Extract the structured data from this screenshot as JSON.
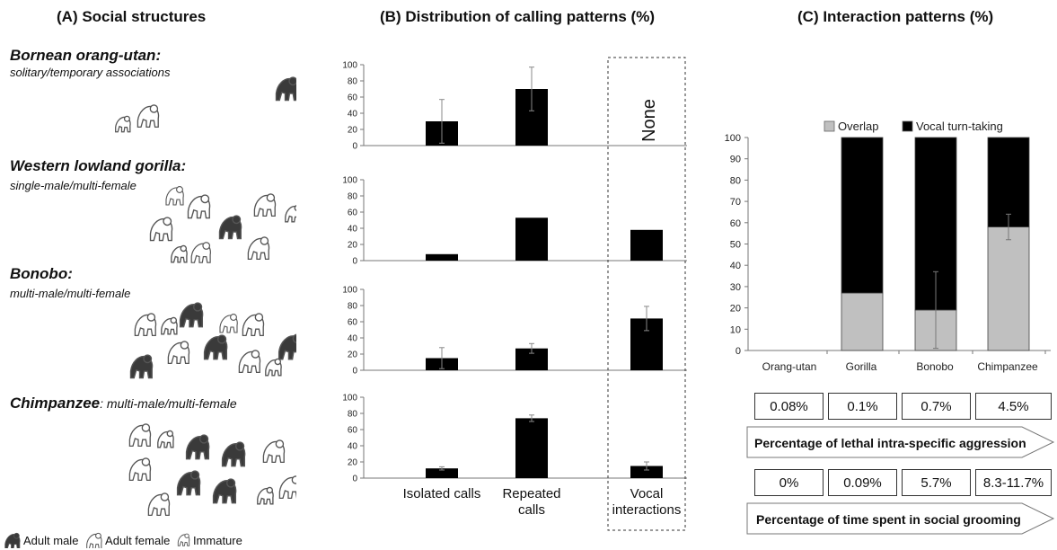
{
  "panel_a": {
    "title": "(A) Social structures",
    "species": [
      {
        "name": "Bornean orang-utan",
        "desc": "solitary/temporary associations"
      },
      {
        "name": "Western lowland gorilla",
        "desc": "single-male/multi-female"
      },
      {
        "name": "Bonobo",
        "desc": "multi-male/multi-female"
      },
      {
        "name": "Chimpanzee",
        "desc": "multi-male/multi-female"
      }
    ],
    "legend": {
      "adult_male": "Adult male",
      "adult_female": "Adult female",
      "immature": "Immature"
    },
    "colors": {
      "male": "#3a3a3a",
      "female": "#ffffff",
      "outline": "#555555"
    }
  },
  "panel_b": {
    "title": "(B) Distribution of calling patterns (%)",
    "none_label": "None"
  },
  "panel_c": {
    "title": "(C) Interaction patterns (%)",
    "lethal_label": "Percentage of lethal intra-specific aggression",
    "lethal_values": [
      "0.08%",
      "0.1%",
      "0.7%",
      "4.5%"
    ],
    "grooming_label": "Percentage of time spent in social grooming",
    "grooming_values": [
      "0%",
      "0.09%",
      "5.7%",
      "8.3-11.7%"
    ]
  },
  "chart_data": [
    {
      "type": "bar",
      "categories": [
        "Isolated calls",
        "Repeated calls",
        "Vocal interactions"
      ],
      "values": [
        30,
        70,
        null
      ],
      "errors": [
        27,
        27,
        null
      ],
      "ylim": [
        0,
        100
      ],
      "annotation": "None"
    },
    {
      "type": "bar",
      "categories": [
        "Isolated calls",
        "Repeated calls",
        "Vocal interactions"
      ],
      "values": [
        8,
        53,
        38
      ],
      "errors": [
        0,
        0,
        0
      ],
      "ylim": [
        0,
        100
      ]
    },
    {
      "type": "bar",
      "categories": [
        "Isolated calls",
        "Repeated calls",
        "Vocal interactions"
      ],
      "values": [
        15,
        27,
        64
      ],
      "errors": [
        13,
        6,
        15
      ],
      "ylim": [
        0,
        100
      ]
    },
    {
      "type": "bar",
      "categories": [
        "Isolated calls",
        "Repeated calls",
        "Vocal interactions"
      ],
      "values": [
        12,
        74,
        15
      ],
      "errors": [
        2,
        4,
        5
      ],
      "ylim": [
        0,
        100
      ],
      "x_tick_labels": [
        "Isolated calls",
        "Repeated calls",
        "Vocal interactions"
      ]
    },
    {
      "type": "bar",
      "stacked": true,
      "categories": [
        "Orang-utan",
        "Gorilla",
        "Bonobo",
        "Chimpanzee"
      ],
      "series": [
        {
          "name": "Overlap",
          "color": "#c0c0c0",
          "values": [
            0,
            27,
            19,
            58
          ]
        },
        {
          "name": "Vocal turn-taking",
          "color": "#000000",
          "values": [
            0,
            73,
            81,
            42
          ]
        }
      ],
      "errors": [
        0,
        0,
        18,
        6
      ],
      "ylim": [
        0,
        100
      ],
      "yticks": [
        0,
        10,
        20,
        30,
        40,
        50,
        60,
        70,
        80,
        90,
        100
      ]
    }
  ]
}
